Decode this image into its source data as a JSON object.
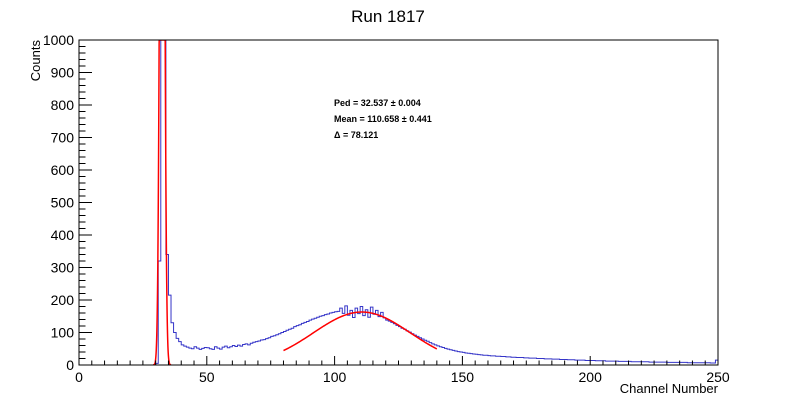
{
  "chart_data": {
    "type": "histogram",
    "title": "Run 1817",
    "xlabel": "Channel Number",
    "ylabel": "Counts",
    "xlim": [
      0,
      250
    ],
    "ylim": [
      0,
      1000
    ],
    "x_ticks": [
      0,
      50,
      100,
      150,
      200,
      250
    ],
    "y_ticks": [
      0,
      100,
      200,
      300,
      400,
      500,
      600,
      700,
      800,
      900,
      1000
    ],
    "grid": false,
    "legend": "none",
    "bin_width": 1,
    "series": [
      {
        "name": "",
        "type": "histogram",
        "color": "#3434c8",
        "bin_start": 0,
        "values": [
          0,
          0,
          0,
          0,
          0,
          0,
          0,
          0,
          0,
          0,
          0,
          0,
          0,
          0,
          0,
          0,
          0,
          0,
          0,
          0,
          0,
          0,
          0,
          0,
          0,
          0,
          0,
          0,
          0,
          0,
          5,
          320,
          1000,
          1000,
          340,
          215,
          130,
          100,
          82,
          72,
          62,
          58,
          55,
          52,
          50,
          56,
          52,
          48,
          51,
          54,
          53,
          50,
          48,
          56,
          52,
          49,
          55,
          58,
          53,
          56,
          60,
          57,
          61,
          58,
          63,
          65,
          62,
          67,
          70,
          72,
          74,
          77,
          78,
          81,
          84,
          88,
          90,
          93,
          96,
          100,
          103,
          107,
          110,
          113,
          118,
          121,
          124,
          128,
          131,
          134,
          138,
          141,
          144,
          147,
          150,
          152,
          155,
          157,
          160,
          162,
          164,
          165,
          175,
          159,
          182,
          153,
          168,
          146,
          175,
          158,
          180,
          152,
          170,
          147,
          178,
          156,
          168,
          149,
          162,
          145,
          138,
          135,
          131,
          127,
          122,
          118,
          113,
          110,
          105,
          101,
          96,
          92,
          88,
          84,
          80,
          76,
          73,
          69,
          65,
          62,
          59,
          56,
          54,
          51,
          49,
          47,
          45,
          43,
          41,
          40,
          39,
          37,
          36,
          35,
          34,
          33,
          32,
          31,
          30,
          30,
          29,
          28,
          28,
          27,
          27,
          26,
          26,
          25,
          25,
          24,
          24,
          23,
          23,
          23,
          22,
          22,
          21,
          21,
          21,
          20,
          20,
          20,
          19,
          19,
          19,
          18,
          18,
          18,
          17,
          17,
          17,
          16,
          16,
          16,
          15,
          15,
          15,
          15,
          14,
          14,
          14,
          14,
          13,
          13,
          13,
          13,
          12,
          12,
          12,
          12,
          12,
          11,
          11,
          11,
          11,
          11,
          10,
          10,
          10,
          10,
          10,
          10,
          10,
          9,
          9,
          9,
          9,
          9,
          9,
          9,
          8,
          8,
          8,
          8,
          8,
          8,
          8,
          8,
          7,
          7,
          7,
          7,
          7,
          7,
          7,
          7,
          7,
          6,
          6,
          15
        ]
      }
    ],
    "fits": [
      {
        "name": "",
        "type": "gaussian",
        "color": "#ff0000",
        "amplitude": 3000,
        "mean": 32.537,
        "sigma": 0.8,
        "range": [
          29,
          36
        ]
      },
      {
        "name": "",
        "type": "gaussian",
        "color": "#ff0000",
        "amplitude": 163,
        "mean": 110.658,
        "sigma": 19,
        "range": [
          80,
          140
        ]
      }
    ],
    "annotations": {
      "ped": "Ped = 32.537 ± 0.004",
      "mean": "Mean = 110.658 ± 0.441",
      "delta": "Δ = 78.121"
    }
  }
}
